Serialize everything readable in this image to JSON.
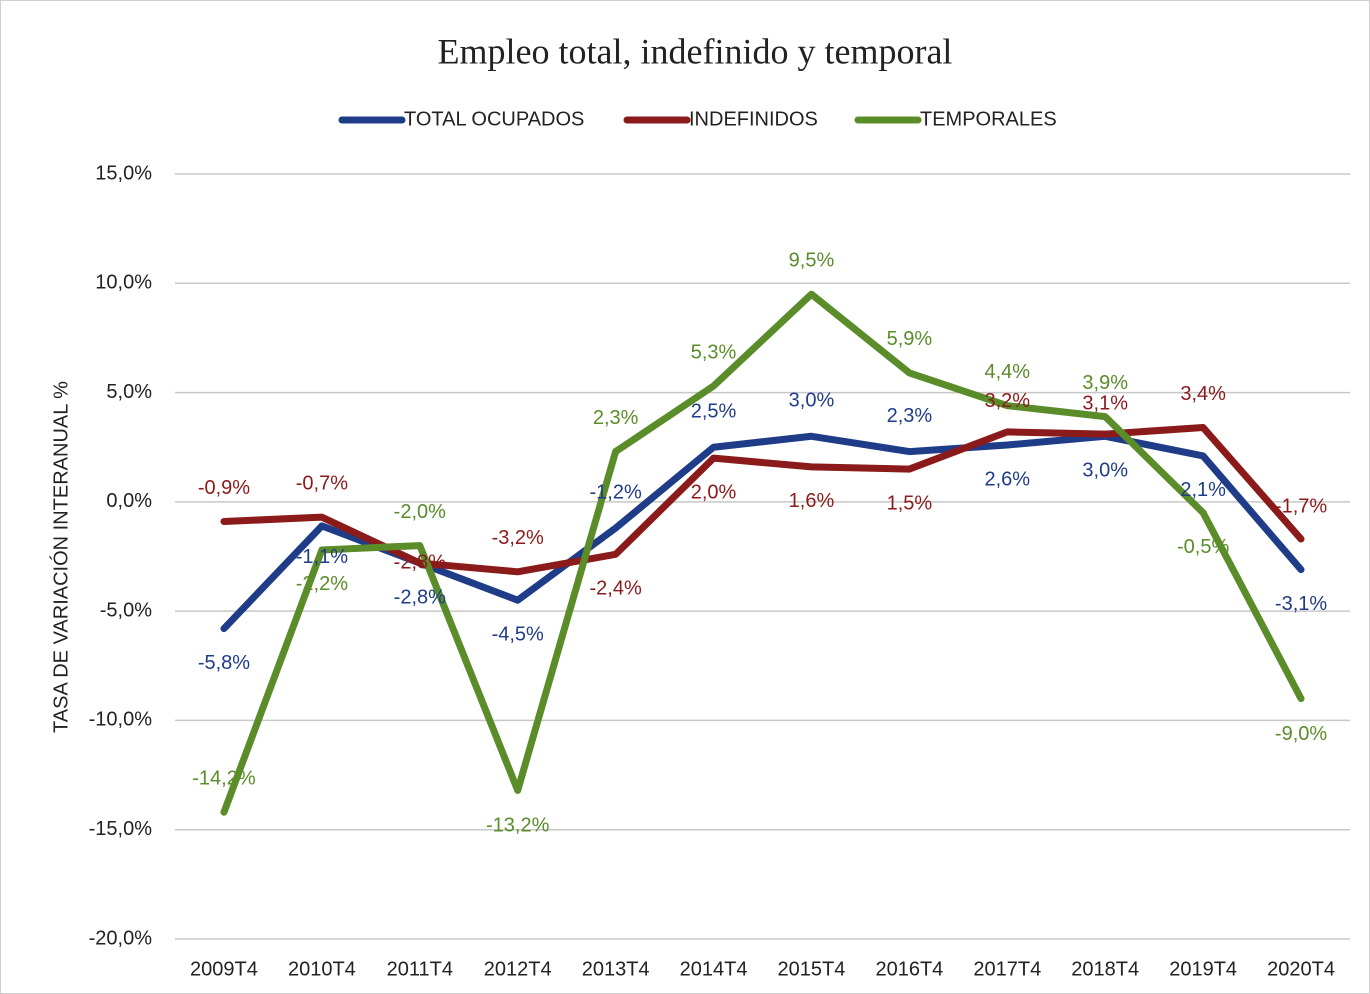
{
  "chart_data": {
    "type": "line",
    "title": "Empleo total, indefinido y temporal",
    "y_label": "TASA DE VARIACIÓN INTERANUAL %",
    "categories": [
      "2009T4",
      "2010T4",
      "2011T4",
      "2012T4",
      "2013T4",
      "2014T4",
      "2015T4",
      "2016T4",
      "2017T4",
      "2018T4",
      "2019T4",
      "2020T4"
    ],
    "series": [
      {
        "name": "TOTAL OCUPADOS",
        "color": "#1f3c88",
        "values": [
          -5.8,
          -1.1,
          -2.8,
          -4.5,
          -1.2,
          2.5,
          3.0,
          2.3,
          2.6,
          3.0,
          2.1,
          -3.1
        ],
        "value_labels": [
          "-5,8%",
          "-1,1%",
          "-2,8%",
          "-4,5%",
          "-1,2%",
          "2,5%",
          "3,0%",
          "2,3%",
          "2,6%",
          "3,0%",
          "2,1%",
          "-3,1%"
        ]
      },
      {
        "name": "INDEFINIDOS",
        "color": "#8b1a1a",
        "values": [
          -0.9,
          -0.7,
          -2.8,
          -3.2,
          -2.4,
          2.0,
          1.6,
          1.5,
          3.2,
          3.1,
          3.4,
          -1.7
        ],
        "value_labels": [
          "-0,9%",
          "-0,7%",
          "-2,8%",
          "-3,2%",
          "-2,4%",
          "2,0%",
          "1,6%",
          "1,5%",
          "3,2%",
          "3,1%",
          "3,4%",
          "-1,7%"
        ]
      },
      {
        "name": "TEMPORALES",
        "color": "#5b8c2a",
        "values": [
          -14.2,
          -2.2,
          -2.0,
          -13.2,
          2.3,
          5.3,
          9.5,
          5.9,
          4.4,
          3.9,
          -0.5,
          -9.0
        ],
        "value_labels": [
          "-14,2%",
          "-2,2%",
          "-2,0%",
          "-13,2%",
          "2,3%",
          "5,3%",
          "9,5%",
          "5,9%",
          "4,4%",
          "3,9%",
          "-0,5%",
          "-9,0%"
        ]
      }
    ],
    "ylim": [
      -20,
      15
    ],
    "yticks": [
      {
        "value": -20,
        "label": "-20,0%"
      },
      {
        "value": -15,
        "label": "-15,0%"
      },
      {
        "value": -10,
        "label": "-10,0%"
      },
      {
        "value": -5,
        "label": "-5,0%"
      },
      {
        "value": 0,
        "label": "0,0%"
      },
      {
        "value": 5,
        "label": "5,0%"
      },
      {
        "value": 10,
        "label": "10,0%"
      },
      {
        "value": 15,
        "label": "15,0%"
      }
    ],
    "grid": true,
    "legend": "top"
  }
}
